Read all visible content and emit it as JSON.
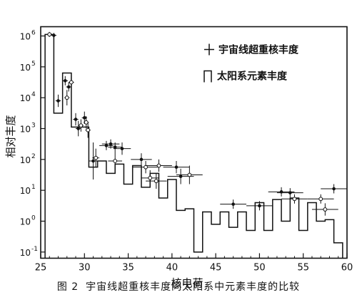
{
  "chart_data": {
    "type": "step-histogram-with-errorbars",
    "xlabel": "核电荷",
    "ylabel": "相对丰度",
    "xlim": [
      25,
      60
    ],
    "ylim_log10": [
      -1.2,
      6.3
    ],
    "x_ticks": [
      25,
      30,
      35,
      40,
      45,
      50,
      55,
      60
    ],
    "x_tick_labels": [
      "25",
      "30",
      "35",
      "40",
      "45",
      "50",
      "55",
      "60"
    ],
    "y_tick_exponents": [
      -1,
      0,
      1,
      2,
      3,
      4,
      5,
      6
    ],
    "y_tick_labels": [
      {
        "base": "10",
        "exp": "-1"
      },
      {
        "base": "10",
        "exp": "0"
      },
      {
        "base": "10",
        "exp": "1"
      },
      {
        "base": "10",
        "exp": "2"
      },
      {
        "base": "10",
        "exp": "3"
      },
      {
        "base": "10",
        "exp": "4"
      },
      {
        "base": "10",
        "exp": "5"
      },
      {
        "base": "10",
        "exp": "6"
      }
    ],
    "legend": {
      "placement": "top-right",
      "items": [
        {
          "symbol": "cross",
          "label": "宇宙线超重核丰度"
        },
        {
          "symbol": "step",
          "label": "太阳系元素丰度"
        }
      ]
    },
    "solar_series": {
      "name": "太阳系元素丰度",
      "z": [
        26,
        27,
        28,
        29,
        30,
        31,
        32,
        33,
        34,
        35,
        36,
        37,
        38,
        39,
        40,
        41,
        42,
        43,
        44,
        45,
        46,
        47,
        48,
        49,
        50,
        51,
        52,
        53,
        54,
        55,
        56,
        57,
        58,
        59
      ],
      "log10_value": [
        6.05,
        3.5,
        4.8,
        3.05,
        3.05,
        1.75,
        1.95,
        1.55,
        1.85,
        1.2,
        1.8,
        1.1,
        1.55,
        0.75,
        1.35,
        0.35,
        0.4,
        -1.0,
        0.3,
        -0.1,
        0.3,
        -0.2,
        0.3,
        -0.3,
        0.6,
        -0.3,
        0.7,
        0.0,
        0.75,
        -0.3,
        0.6,
        0.0,
        0.05,
        -0.7
      ]
    },
    "cosmic_ray_series": {
      "name": "宇宙线超重核丰度",
      "points": [
        {
          "z": 26.0,
          "log10": 6.05,
          "xerr": 0.3,
          "yerr": 0.08,
          "marker": "open"
        },
        {
          "z": 26.5,
          "log10": 6.02,
          "xerr": 0.3,
          "yerr": 0.08,
          "marker": "filled"
        },
        {
          "z": 27.0,
          "log10": 3.9,
          "xerr": 0.3,
          "yerr": 0.2,
          "marker": "filled"
        },
        {
          "z": 27.8,
          "log10": 4.55,
          "xerr": 0.3,
          "yerr": 0.15,
          "marker": "filled"
        },
        {
          "z": 28.2,
          "log10": 4.35,
          "xerr": 0.3,
          "yerr": 0.15,
          "marker": "filled"
        },
        {
          "z": 28.5,
          "log10": 4.5,
          "xerr": 0.3,
          "yerr": 0.2,
          "marker": "open"
        },
        {
          "z": 28.0,
          "log10": 4.0,
          "xerr": 0.3,
          "yerr": 0.25,
          "marker": "open"
        },
        {
          "z": 29.0,
          "log10": 3.3,
          "xerr": 0.3,
          "yerr": 0.2,
          "marker": "filled"
        },
        {
          "z": 29.3,
          "log10": 3.0,
          "xerr": 0.3,
          "yerr": 0.25,
          "marker": "filled"
        },
        {
          "z": 29.6,
          "log10": 3.1,
          "xerr": 0.3,
          "yerr": 0.2,
          "marker": "open"
        },
        {
          "z": 30.0,
          "log10": 3.35,
          "xerr": 0.3,
          "yerr": 0.2,
          "marker": "filled"
        },
        {
          "z": 30.2,
          "log10": 3.2,
          "xerr": 0.3,
          "yerr": 0.2,
          "marker": "open"
        },
        {
          "z": 30.4,
          "log10": 2.95,
          "xerr": 0.3,
          "yerr": 0.25,
          "marker": "open"
        },
        {
          "z": 31.0,
          "log10": 1.95,
          "xerr": 0.5,
          "yerr": 0.6,
          "marker": "filled"
        },
        {
          "z": 31.3,
          "log10": 2.05,
          "xerr": 0.4,
          "yerr": 0.3,
          "marker": "open"
        },
        {
          "z": 32.5,
          "log10": 2.45,
          "xerr": 0.8,
          "yerr": 0.15,
          "marker": "filled"
        },
        {
          "z": 33.0,
          "log10": 2.5,
          "xerr": 1.0,
          "yerr": 0.15,
          "marker": "filled"
        },
        {
          "z": 33.5,
          "log10": 2.4,
          "xerr": 0.8,
          "yerr": 0.15,
          "marker": "filled"
        },
        {
          "z": 34.3,
          "log10": 2.35,
          "xerr": 1.0,
          "yerr": 0.2,
          "marker": "filled"
        },
        {
          "z": 33.5,
          "log10": 1.95,
          "xerr": 0.8,
          "yerr": 0.3,
          "marker": "open"
        },
        {
          "z": 36.5,
          "log10": 2.0,
          "xerr": 1.2,
          "yerr": 0.2,
          "marker": "filled"
        },
        {
          "z": 37.0,
          "log10": 1.75,
          "xerr": 1.5,
          "yerr": 0.2,
          "marker": "open"
        },
        {
          "z": 37.5,
          "log10": 1.4,
          "xerr": 1.0,
          "yerr": 0.25,
          "marker": "open"
        },
        {
          "z": 38.5,
          "log10": 1.8,
          "xerr": 1.5,
          "yerr": 0.2,
          "marker": "open"
        },
        {
          "z": 38.2,
          "log10": 1.3,
          "xerr": 1.2,
          "yerr": 0.25,
          "marker": "open"
        },
        {
          "z": 40.5,
          "log10": 1.75,
          "xerr": 1.5,
          "yerr": 0.2,
          "marker": "filled"
        },
        {
          "z": 41.0,
          "log10": 1.45,
          "xerr": 1.5,
          "yerr": 0.25,
          "marker": "filled"
        },
        {
          "z": 42.0,
          "log10": 1.5,
          "xerr": 1.5,
          "yerr": 0.3,
          "marker": "open"
        },
        {
          "z": 47.0,
          "log10": 0.55,
          "xerr": 1.5,
          "yerr": 0.15,
          "marker": "filled"
        },
        {
          "z": 50.0,
          "log10": 0.5,
          "xerr": 1.5,
          "yerr": 0.15,
          "marker": "filled"
        },
        {
          "z": 52.5,
          "log10": 0.95,
          "xerr": 1.5,
          "yerr": 0.15,
          "marker": "filled"
        },
        {
          "z": 53.5,
          "log10": 0.92,
          "xerr": 1.5,
          "yerr": 0.15,
          "marker": "filled"
        },
        {
          "z": 54.0,
          "log10": 0.72,
          "xerr": 1.5,
          "yerr": 0.15,
          "marker": "open"
        },
        {
          "z": 57.0,
          "log10": 0.72,
          "xerr": 1.5,
          "yerr": 0.15,
          "marker": "open"
        },
        {
          "z": 57.5,
          "log10": 0.38,
          "xerr": 1.5,
          "yerr": 0.2,
          "marker": "open"
        },
        {
          "z": 58.5,
          "log10": 1.05,
          "xerr": 1.5,
          "yerr": 0.15,
          "marker": "filled"
        }
      ]
    }
  },
  "caption": {
    "figure_number": "图 2",
    "text": "宇宙线超重核丰度同太阳系中元素丰度的比较"
  },
  "colors": {
    "ink": "#111111",
    "background": "#ffffff"
  }
}
